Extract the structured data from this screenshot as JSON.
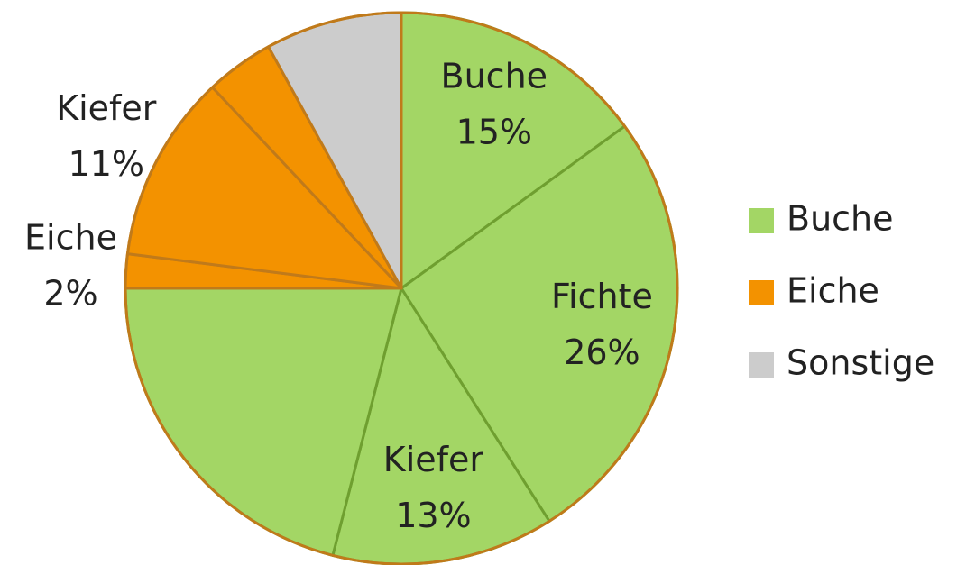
{
  "chart_data": {
    "type": "pie",
    "categories": [
      "Buche",
      "Fichte",
      "Kiefer",
      null,
      "Eiche",
      "Kiefer",
      null,
      null
    ],
    "values": [
      15,
      26,
      13,
      21,
      2,
      11,
      4,
      8
    ],
    "value_labels": [
      "15%",
      "26%",
      "13%",
      null,
      "2%",
      "11%",
      null,
      null
    ],
    "colors": [
      "#a3d665",
      "#a3d665",
      "#a3d665",
      "#a3d665",
      "#f39200",
      "#f39200",
      "#f39200",
      "#cccccc"
    ],
    "legend": [
      {
        "name": "Buche",
        "color": "#a3d665"
      },
      {
        "name": "Eiche",
        "color": "#f39200"
      },
      {
        "name": "Sonstige",
        "color": "#cccccc"
      }
    ],
    "legend_position": "right"
  }
}
